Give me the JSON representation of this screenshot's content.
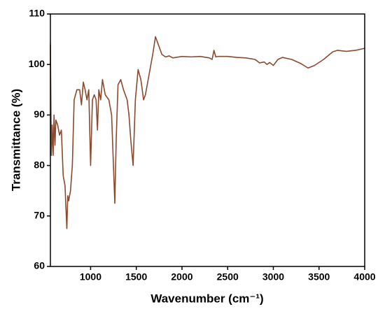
{
  "chart_data": {
    "type": "line",
    "x_label": "Wavenumber (cm⁻¹)",
    "y_label": "Transmittance (%)",
    "xlim": [
      560,
      4000
    ],
    "xticks": [
      1000,
      1500,
      2000,
      2500,
      3000,
      3500,
      4000
    ],
    "ylim": [
      60,
      110
    ],
    "yticks": [
      60,
      70,
      80,
      90,
      100,
      110
    ],
    "series": [
      {
        "color": "#8b4a2e",
        "x": [
          560,
          570,
          580,
          590,
          600,
          610,
          620,
          640,
          660,
          680,
          700,
          720,
          740,
          750,
          760,
          780,
          800,
          820,
          850,
          880,
          900,
          920,
          940,
          960,
          980,
          1000,
          1020,
          1040,
          1060,
          1075,
          1090,
          1110,
          1130,
          1160,
          1200,
          1230,
          1250,
          1265,
          1280,
          1300,
          1330,
          1360,
          1400,
          1420,
          1440,
          1465,
          1490,
          1520,
          1550,
          1580,
          1600,
          1640,
          1680,
          1710,
          1740,
          1780,
          1820,
          1860,
          1900,
          2000,
          2100,
          2200,
          2300,
          2330,
          2350,
          2370,
          2400,
          2500,
          2600,
          2700,
          2800,
          2850,
          2900,
          2930,
          2960,
          3000,
          3050,
          3100,
          3200,
          3300,
          3380,
          3450,
          3550,
          3650,
          3700,
          3800,
          3900,
          4000
        ],
        "values": [
          104,
          82,
          88,
          82,
          90,
          84,
          89,
          88,
          86,
          87,
          78,
          76,
          67.5,
          74,
          73,
          75,
          80,
          93,
          95,
          95,
          92,
          96.5,
          95,
          93,
          95,
          80,
          93,
          94,
          93,
          87,
          95,
          93,
          97,
          94,
          93,
          90,
          80,
          72.5,
          85,
          96,
          97,
          95,
          93,
          90,
          85,
          80,
          93,
          99,
          97,
          93,
          94,
          98,
          102,
          105.5,
          104,
          102,
          101.5,
          101.7,
          101.3,
          101.6,
          101.5,
          101.6,
          101.3,
          101,
          102.8,
          101.5,
          101.6,
          101.6,
          101.4,
          101.3,
          101,
          100.3,
          100.5,
          100,
          100.4,
          99.8,
          101,
          101.4,
          101,
          100.2,
          99.3,
          99.8,
          101,
          102.5,
          102.8,
          102.6,
          102.8,
          103.2
        ]
      }
    ]
  }
}
